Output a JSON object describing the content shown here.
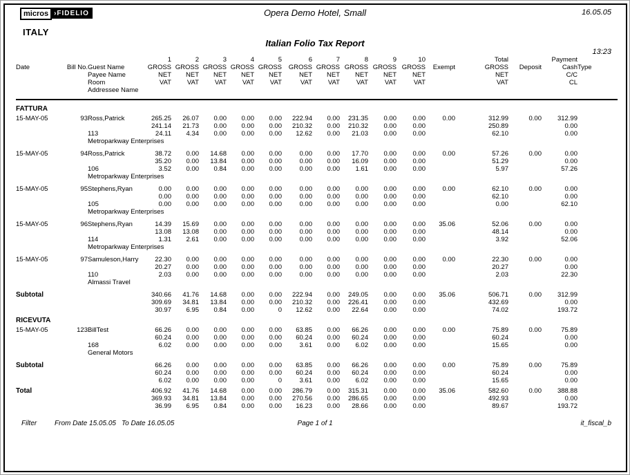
{
  "header": {
    "logo_micros": "micros",
    "logo_sep": "›",
    "logo_fidelio": "FIDELIO",
    "country": "ITALY",
    "hotel_title": "Opera Demo Hotel, Small",
    "report_title": "Italian Folio Tax Report",
    "report_date": "16.05.05",
    "report_time": "13:23"
  },
  "table": {
    "col_numbers": [
      "1",
      "2",
      "3",
      "4",
      "5",
      "6",
      "7",
      "8",
      "9",
      "10"
    ],
    "headers": {
      "date": "Date",
      "bill_no": "Bill No.",
      "guest_lines": [
        "Guest Name",
        "Payee Name",
        "Room",
        "Addressee Name"
      ],
      "value_lines": [
        "GROSS",
        "NET",
        "VAT"
      ],
      "exempt": "Exempt",
      "total_label": "Total",
      "deposit": "Deposit",
      "payment_label": "Payment",
      "payment_lines": [
        "Cash",
        "C/C",
        "CL"
      ],
      "type": "Type"
    },
    "sections": [
      {
        "name": "FATTURA",
        "rows": [
          {
            "date": "15-MAY-05",
            "bill": "93",
            "guest": "Ross,Patrick",
            "room": "113",
            "addressee": "Metroparkway Enterprises",
            "gross": [
              "265.25",
              "26.07",
              "0.00",
              "0.00",
              "0.00",
              "222.94",
              "0.00",
              "231.35",
              "0.00",
              "0.00"
            ],
            "net": [
              "241.14",
              "21.73",
              "0.00",
              "0.00",
              "0.00",
              "210.32",
              "0.00",
              "210.32",
              "0.00",
              "0.00"
            ],
            "vat": [
              "24.11",
              "4.34",
              "0.00",
              "0.00",
              "0.00",
              "12.62",
              "0.00",
              "21.03",
              "0.00",
              "0.00"
            ],
            "exempt": "0.00",
            "total_gross": "312.99",
            "total_net": "250.89",
            "total_vat": "62.10",
            "deposit": "0.00",
            "pay_cash": "312.99",
            "pay_cc": "0.00",
            "pay_cl": "0.00",
            "type": ""
          },
          {
            "date": "15-MAY-05",
            "bill": "94",
            "guest": "Ross,Patrick",
            "room": "106",
            "addressee": "Metroparkway Enterprises",
            "gross": [
              "38.72",
              "0.00",
              "14.68",
              "0.00",
              "0.00",
              "0.00",
              "0.00",
              "17.70",
              "0.00",
              "0.00"
            ],
            "net": [
              "35.20",
              "0.00",
              "13.84",
              "0.00",
              "0.00",
              "0.00",
              "0.00",
              "16.09",
              "0.00",
              "0.00"
            ],
            "vat": [
              "3.52",
              "0.00",
              "0.84",
              "0.00",
              "0.00",
              "0.00",
              "0.00",
              "1.61",
              "0.00",
              "0.00"
            ],
            "exempt": "0.00",
            "total_gross": "57.26",
            "total_net": "51.29",
            "total_vat": "5.97",
            "deposit": "0.00",
            "pay_cash": "0.00",
            "pay_cc": "0.00",
            "pay_cl": "57.26",
            "type": ""
          },
          {
            "date": "15-MAY-05",
            "bill": "95",
            "guest": "Stephens,Ryan",
            "room": "105",
            "addressee": "Metroparkway Enterprises",
            "gross": [
              "0.00",
              "0.00",
              "0.00",
              "0.00",
              "0.00",
              "0.00",
              "0.00",
              "0.00",
              "0.00",
              "0.00"
            ],
            "net": [
              "0.00",
              "0.00",
              "0.00",
              "0.00",
              "0.00",
              "0.00",
              "0.00",
              "0.00",
              "0.00",
              "0.00"
            ],
            "vat": [
              "0.00",
              "0.00",
              "0.00",
              "0.00",
              "0.00",
              "0.00",
              "0.00",
              "0.00",
              "0.00",
              "0.00"
            ],
            "exempt": "0.00",
            "total_gross": "62.10",
            "total_net": "62.10",
            "total_vat": "0.00",
            "deposit": "0.00",
            "pay_cash": "0.00",
            "pay_cc": "0.00",
            "pay_cl": "62.10",
            "type": ""
          },
          {
            "date": "15-MAY-05",
            "bill": "96",
            "guest": "Stephens,Ryan",
            "room": "114",
            "addressee": "Metroparkway Enterprises",
            "gross": [
              "14.39",
              "15.69",
              "0.00",
              "0.00",
              "0.00",
              "0.00",
              "0.00",
              "0.00",
              "0.00",
              "0.00"
            ],
            "net": [
              "13.08",
              "13.08",
              "0.00",
              "0.00",
              "0.00",
              "0.00",
              "0.00",
              "0.00",
              "0.00",
              "0.00"
            ],
            "vat": [
              "1.31",
              "2.61",
              "0.00",
              "0.00",
              "0.00",
              "0.00",
              "0.00",
              "0.00",
              "0.00",
              "0.00"
            ],
            "exempt": "35.06",
            "total_gross": "52.06",
            "total_net": "48.14",
            "total_vat": "3.92",
            "deposit": "0.00",
            "pay_cash": "0.00",
            "pay_cc": "0.00",
            "pay_cl": "52.06",
            "type": ""
          },
          {
            "date": "15-MAY-05",
            "bill": "97",
            "guest": "Samuleson,Harry",
            "room": "110",
            "addressee": "Almassi Travel",
            "gross": [
              "22.30",
              "0.00",
              "0.00",
              "0.00",
              "0.00",
              "0.00",
              "0.00",
              "0.00",
              "0.00",
              "0.00"
            ],
            "net": [
              "20.27",
              "0.00",
              "0.00",
              "0.00",
              "0.00",
              "0.00",
              "0.00",
              "0.00",
              "0.00",
              "0.00"
            ],
            "vat": [
              "2.03",
              "0.00",
              "0.00",
              "0.00",
              "0.00",
              "0.00",
              "0.00",
              "0.00",
              "0.00",
              "0.00"
            ],
            "exempt": "0.00",
            "total_gross": "22.30",
            "total_net": "20.27",
            "total_vat": "2.03",
            "deposit": "0.00",
            "pay_cash": "0.00",
            "pay_cc": "0.00",
            "pay_cl": "22.30",
            "type": ""
          }
        ],
        "subtotal": {
          "label": "Subtotal",
          "gross": [
            "340.66",
            "41.76",
            "14.68",
            "0.00",
            "0.00",
            "222.94",
            "0.00",
            "249.05",
            "0.00",
            "0.00"
          ],
          "net": [
            "309.69",
            "34.81",
            "13.84",
            "0.00",
            "0.00",
            "210.32",
            "0.00",
            "226.41",
            "0.00",
            "0.00"
          ],
          "vat": [
            "30.97",
            "6.95",
            "0.84",
            "0.00",
            "0",
            "12.62",
            "0.00",
            "22.64",
            "0.00",
            "0.00"
          ],
          "exempt": "35.06",
          "total_gross": "506.71",
          "total_net": "432.69",
          "total_vat": "74.02",
          "deposit": "0.00",
          "pay_cash": "312.99",
          "pay_cc": "0.00",
          "pay_cl": "193.72"
        }
      },
      {
        "name": "RICEVUTA",
        "rows": [
          {
            "date": "15-MAY-05",
            "bill": "123",
            "guest": "BillTest",
            "room": "168",
            "addressee": "General Motors",
            "gross": [
              "66.26",
              "0.00",
              "0.00",
              "0.00",
              "0.00",
              "63.85",
              "0.00",
              "66.26",
              "0.00",
              "0.00"
            ],
            "net": [
              "60.24",
              "0.00",
              "0.00",
              "0.00",
              "0.00",
              "60.24",
              "0.00",
              "60.24",
              "0.00",
              "0.00"
            ],
            "vat": [
              "6.02",
              "0.00",
              "0.00",
              "0.00",
              "0.00",
              "3.61",
              "0.00",
              "6.02",
              "0.00",
              "0.00"
            ],
            "exempt": "0.00",
            "total_gross": "75.89",
            "total_net": "60.24",
            "total_vat": "15.65",
            "deposit": "0.00",
            "pay_cash": "75.89",
            "pay_cc": "0.00",
            "pay_cl": "0.00",
            "type": ""
          }
        ],
        "subtotal": {
          "label": "Subtotal",
          "gross": [
            "66.26",
            "0.00",
            "0.00",
            "0.00",
            "0.00",
            "63.85",
            "0.00",
            "66.26",
            "0.00",
            "0.00"
          ],
          "net": [
            "60.24",
            "0.00",
            "0.00",
            "0.00",
            "0.00",
            "60.24",
            "0.00",
            "60.24",
            "0.00",
            "0.00"
          ],
          "vat": [
            "6.02",
            "0.00",
            "0.00",
            "0.00",
            "0",
            "3.61",
            "0.00",
            "6.02",
            "0.00",
            "0.00"
          ],
          "exempt": "0.00",
          "total_gross": "75.89",
          "total_net": "60.24",
          "total_vat": "15.65",
          "deposit": "0.00",
          "pay_cash": "75.89",
          "pay_cc": "0.00",
          "pay_cl": "0.00"
        }
      }
    ],
    "grand_total": {
      "label": "Total",
      "gross": [
        "406.92",
        "41.76",
        "14.68",
        "0.00",
        "0.00",
        "286.79",
        "0.00",
        "315.31",
        "0.00",
        "0.00"
      ],
      "net": [
        "369.93",
        "34.81",
        "13.84",
        "0.00",
        "0.00",
        "270.56",
        "0.00",
        "286.65",
        "0.00",
        "0.00"
      ],
      "vat": [
        "36.99",
        "6.95",
        "0.84",
        "0.00",
        "0.00",
        "16.23",
        "0.00",
        "28.66",
        "0.00",
        "0.00"
      ],
      "exempt": "35.06",
      "total_gross": "582.60",
      "total_net": "492.93",
      "total_vat": "89.67",
      "deposit": "0.00",
      "pay_cash": "388.88",
      "pay_cc": "0.00",
      "pay_cl": "193.72"
    }
  },
  "footer": {
    "filter_label": "Filter",
    "from_date": "From Date 15.05.05",
    "to_date": "To Date 16.05.05",
    "page": "Page 1 of 1",
    "report_id": "it_fiscal_b"
  }
}
